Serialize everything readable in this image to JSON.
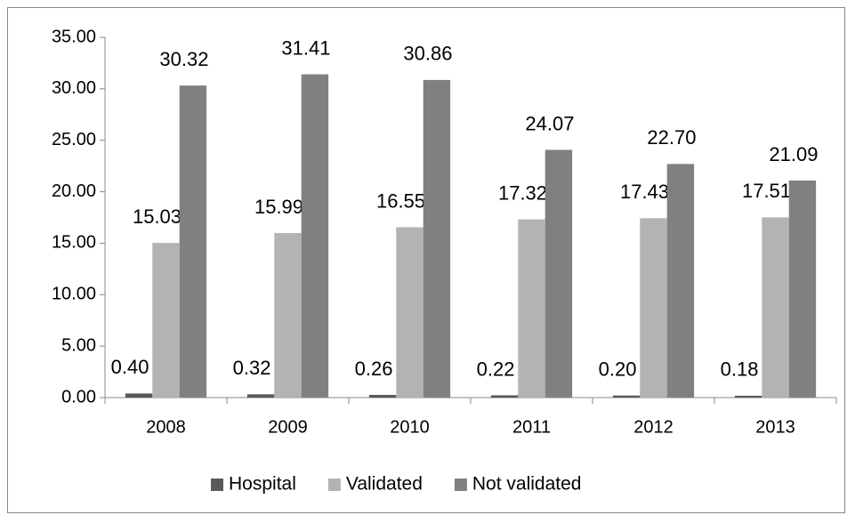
{
  "chart_data": {
    "type": "bar",
    "categories": [
      "2008",
      "2009",
      "2010",
      "2011",
      "2012",
      "2013"
    ],
    "series": [
      {
        "name": "Hospital",
        "color": "#595959",
        "values": [
          0.4,
          0.32,
          0.26,
          0.22,
          0.2,
          0.18
        ],
        "value_labels": [
          "0.40",
          "0.32",
          "0.26",
          "0.22",
          "0.20",
          "0.18"
        ]
      },
      {
        "name": "Validated",
        "color": "#b3b3b3",
        "values": [
          15.03,
          15.99,
          16.55,
          17.32,
          17.43,
          17.51
        ],
        "value_labels": [
          "15.03",
          "15.99",
          "16.55",
          "17.32",
          "17.43",
          "17.51"
        ]
      },
      {
        "name": "Not validated",
        "color": "#808080",
        "values": [
          30.32,
          31.41,
          30.86,
          24.07,
          22.7,
          21.09
        ],
        "value_labels": [
          "30.32",
          "31.41",
          "30.86",
          "24.07",
          "22.70",
          "21.09"
        ]
      }
    ],
    "ylim": [
      0,
      35
    ],
    "yticks": [
      {
        "value": 0,
        "label": "0.00"
      },
      {
        "value": 5,
        "label": "5.00"
      },
      {
        "value": 10,
        "label": "10.00"
      },
      {
        "value": 15,
        "label": "15.00"
      },
      {
        "value": 20,
        "label": "20.00"
      },
      {
        "value": 25,
        "label": "25.00"
      },
      {
        "value": 30,
        "label": "30.00"
      },
      {
        "value": 35,
        "label": "35.00"
      }
    ],
    "grid": false,
    "legend": "bottom"
  }
}
